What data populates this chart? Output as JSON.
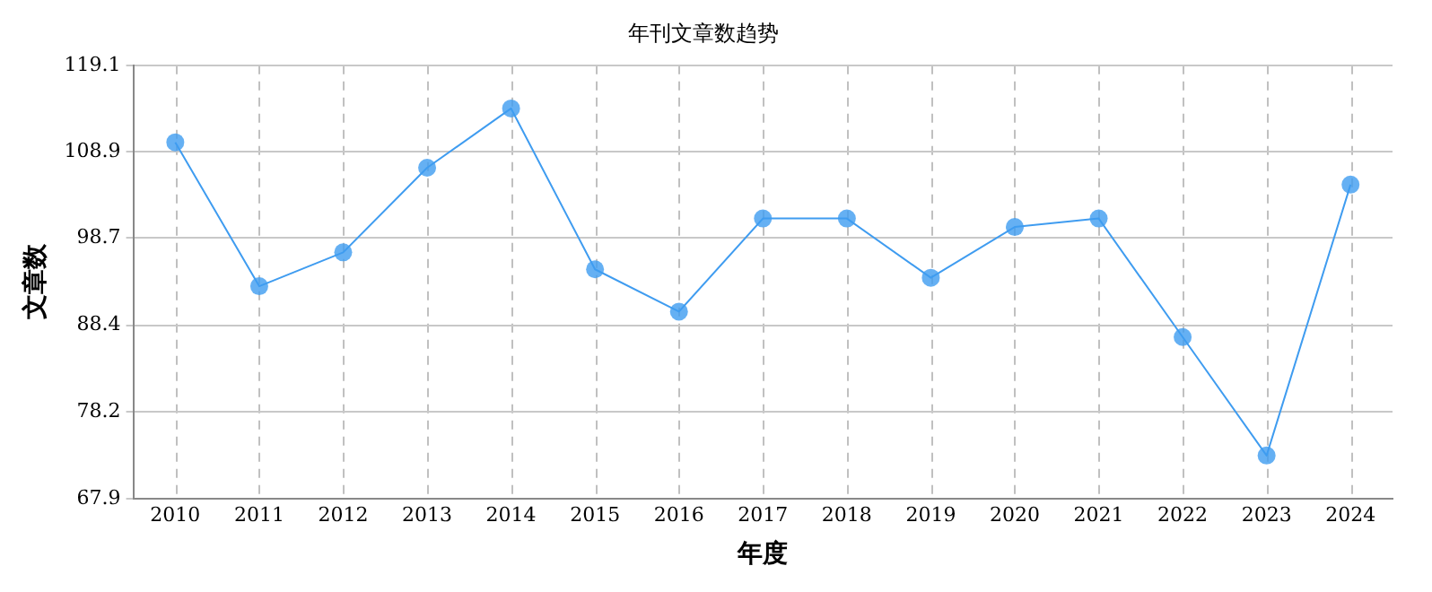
{
  "chart_data": {
    "type": "line",
    "title": "年刊文章数趋势",
    "xlabel": "年度",
    "ylabel": "文章数",
    "categories": [
      "2010",
      "2011",
      "2012",
      "2013",
      "2014",
      "2015",
      "2016",
      "2017",
      "2018",
      "2019",
      "2020",
      "2021",
      "2022",
      "2023",
      "2024"
    ],
    "series": [
      {
        "color": "#3f9cf0",
        "values": [
          110,
          93,
          97,
          107,
          114,
          95,
          90,
          101,
          101,
          94,
          100,
          101,
          87,
          73,
          105
        ]
      }
    ],
    "ylim": [
      67.9,
      119.1
    ],
    "yticks": [
      67.9,
      78.2,
      88.4,
      98.7,
      108.9,
      119.1
    ],
    "grid": true,
    "marker": "circle",
    "line_style": "solid",
    "legend": false
  }
}
